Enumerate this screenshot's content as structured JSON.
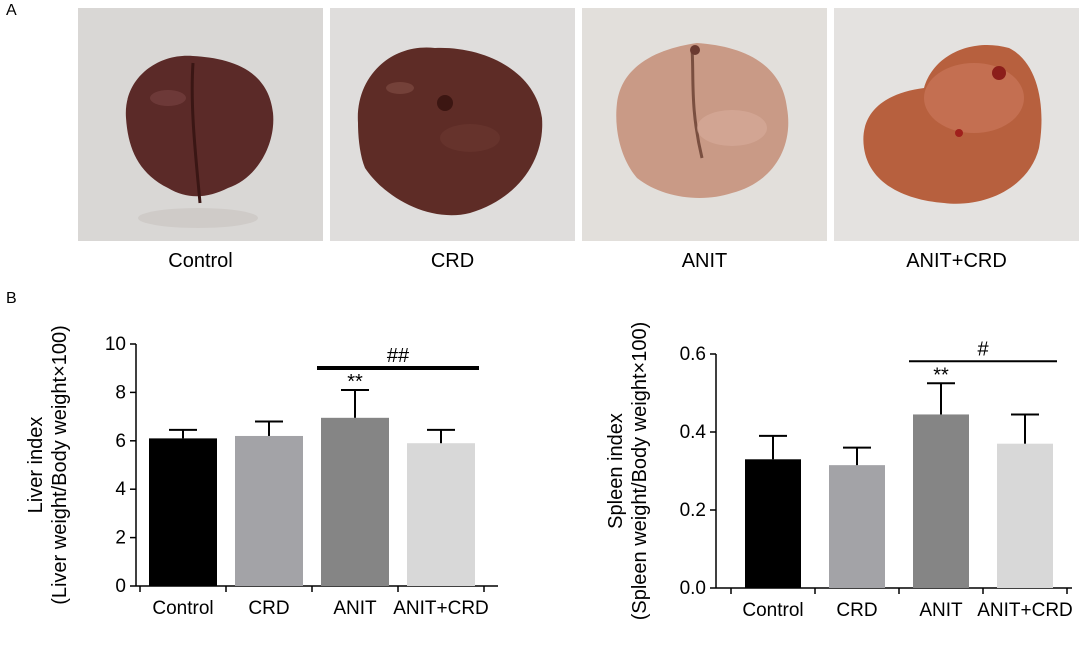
{
  "panel_a_label": "A",
  "panel_b_label": "B",
  "photos": [
    {
      "label": "Control",
      "color": "#5b2a28"
    },
    {
      "label": "CRD",
      "color": "#5e2c26"
    },
    {
      "label": "ANIT",
      "color": "#c99a86"
    },
    {
      "label": "ANIT+CRD",
      "color": "#b7603e"
    }
  ],
  "chart_data": [
    {
      "type": "bar",
      "categories": [
        "Control",
        "CRD",
        "ANIT",
        "ANIT+CRD"
      ],
      "values": [
        6.1,
        6.2,
        6.95,
        5.9
      ],
      "errors": [
        0.35,
        0.6,
        1.15,
        0.55
      ],
      "colors": [
        "#000000",
        "#a3a3a7",
        "#858585",
        "#d8d8d8"
      ],
      "ylim": [
        0,
        10
      ],
      "yticks": [
        0,
        2,
        4,
        6,
        8,
        10
      ],
      "ytick_labels": [
        "0",
        "2",
        "4",
        "6",
        "8",
        "10"
      ],
      "ylabel": "Liver index",
      "ylabel2": "(Liver weight/Body weight×100)",
      "xlabel": "",
      "sig_marks": [
        {
          "category": "ANIT",
          "text": "**"
        }
      ],
      "comparisons": [
        {
          "from": "ANIT",
          "to": "ANIT+CRD",
          "text": "##"
        }
      ]
    },
    {
      "type": "bar",
      "categories": [
        "Control",
        "CRD",
        "ANIT",
        "ANIT+CRD"
      ],
      "values": [
        0.33,
        0.315,
        0.445,
        0.37
      ],
      "errors": [
        0.06,
        0.045,
        0.08,
        0.075
      ],
      "colors": [
        "#000000",
        "#a3a3a7",
        "#858585",
        "#d8d8d8"
      ],
      "ylim": [
        0,
        0.6
      ],
      "yticks": [
        0,
        0.2,
        0.4,
        0.6
      ],
      "ytick_labels": [
        "0.0",
        "0.2",
        "0.4",
        "0.6"
      ],
      "ylabel": "Spleen index",
      "ylabel2": "(Spleen weight/Body weight×100)",
      "xlabel": "",
      "sig_marks": [
        {
          "category": "ANIT",
          "text": "**"
        }
      ],
      "comparisons": [
        {
          "from": "ANIT",
          "to": "ANIT+CRD",
          "text": "#"
        }
      ]
    }
  ]
}
